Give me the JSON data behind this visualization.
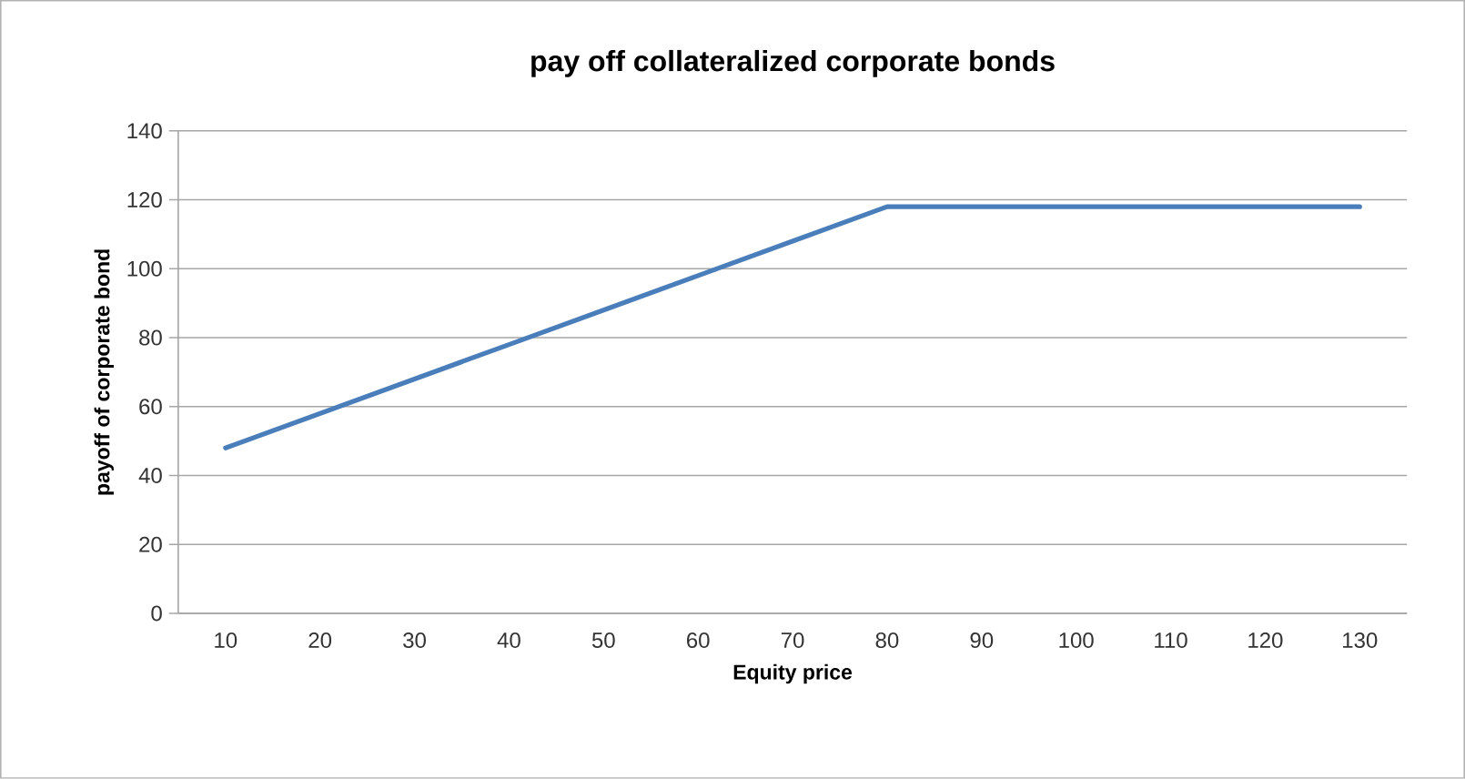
{
  "chart_data": {
    "type": "line",
    "title": "pay off collateralized corporate bonds",
    "xlabel": "Equity price",
    "ylabel": "payoff of corporate bond",
    "categories": [
      "10",
      "20",
      "30",
      "40",
      "50",
      "60",
      "70",
      "80",
      "90",
      "100",
      "110",
      "120",
      "130"
    ],
    "series": [
      {
        "color": "#4a7ebb",
        "values": [
          48,
          58,
          68,
          78,
          88,
          98,
          108,
          118,
          118,
          118,
          118,
          118,
          118
        ]
      }
    ],
    "ylim": [
      0,
      140
    ],
    "yticks": [
      0,
      20,
      40,
      60,
      80,
      100,
      120,
      140
    ],
    "grid": "y",
    "marker": "none",
    "line_style": "solid"
  }
}
